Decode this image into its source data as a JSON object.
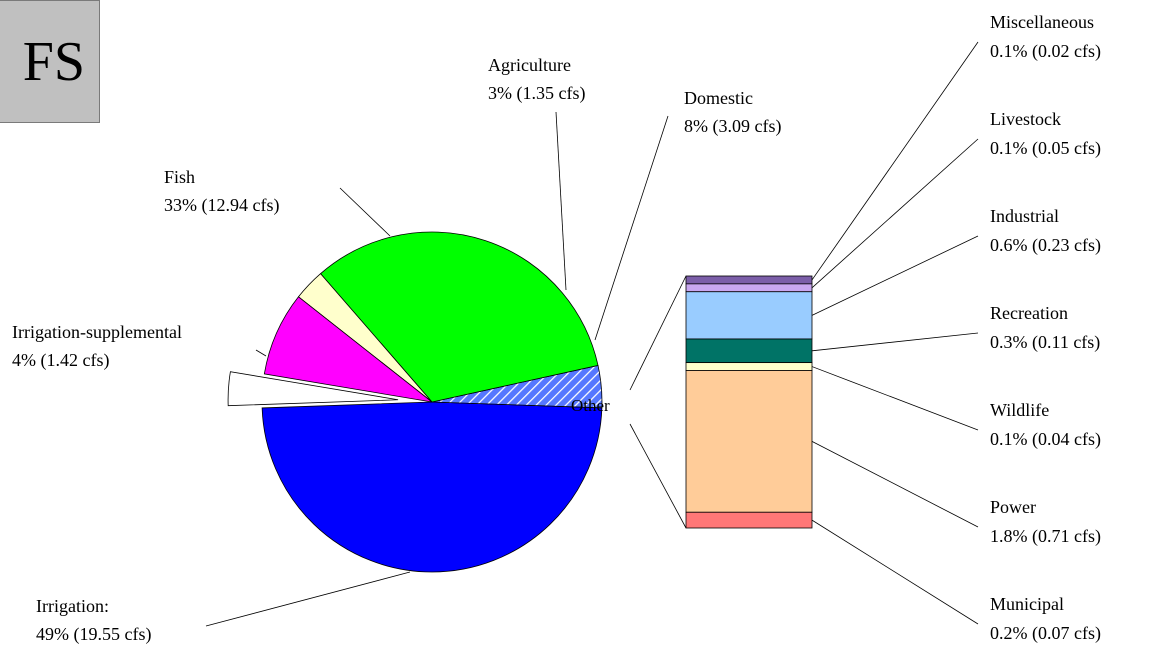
{
  "corner_label": "FS",
  "chart_data": [
    {
      "type": "pie",
      "exploded_label": "Other",
      "slices": [
        {
          "label": "Irrigation:",
          "value_text": "49% (19.55 cfs)",
          "percent": 49,
          "cfs": 19.55,
          "color": "#0000ff",
          "pattern": "solid"
        },
        {
          "label": "Irrigation-supplemental",
          "value_text": "4% (1.42 cfs)",
          "percent": 4,
          "cfs": 1.42,
          "color": "#3355ff",
          "pattern": "hatched"
        },
        {
          "label": "Fish",
          "value_text": "33% (12.94 cfs)",
          "percent": 33,
          "cfs": 12.94,
          "color": "#00ff00",
          "pattern": "solid"
        },
        {
          "label": "Agriculture",
          "value_text": "3% (1.35 cfs)",
          "percent": 3,
          "cfs": 1.35,
          "color": "#ffffcc",
          "pattern": "solid"
        },
        {
          "label": "Domestic",
          "value_text": "8% (3.09 cfs)",
          "percent": 8,
          "cfs": 3.09,
          "color": "#ff00ff",
          "pattern": "solid"
        },
        {
          "label": "Other",
          "value_text": "",
          "percent": 3.2,
          "cfs": 1.23,
          "color": "#ffffff",
          "pattern": "solid"
        }
      ]
    },
    {
      "type": "bar",
      "stacked": true,
      "series": [
        {
          "label": "Miscellaneous",
          "value_text": "0.1% (0.02 cfs)",
          "percent": 0.1,
          "cfs": 0.02,
          "color": "#7b5ea8"
        },
        {
          "label": "Livestock",
          "value_text": "0.1% (0.05 cfs)",
          "percent": 0.1,
          "cfs": 0.05,
          "color": "#c9a7f0"
        },
        {
          "label": "Industrial",
          "value_text": "0.6% (0.23 cfs)",
          "percent": 0.6,
          "cfs": 0.23,
          "color": "#99ccff"
        },
        {
          "label": "Recreation",
          "value_text": "0.3% (0.11 cfs)",
          "percent": 0.3,
          "cfs": 0.11,
          "color": "#007366"
        },
        {
          "label": "Wildlife",
          "value_text": "0.1% (0.04 cfs)",
          "percent": 0.1,
          "cfs": 0.04,
          "color": "#ffffcc"
        },
        {
          "label": "Power",
          "value_text": "1.8% (0.71 cfs)",
          "percent": 1.8,
          "cfs": 0.71,
          "color": "#ffcc99"
        },
        {
          "label": "Municipal",
          "value_text": "0.2% (0.07 cfs)",
          "percent": 0.2,
          "cfs": 0.07,
          "color": "#ff7777"
        }
      ]
    }
  ]
}
